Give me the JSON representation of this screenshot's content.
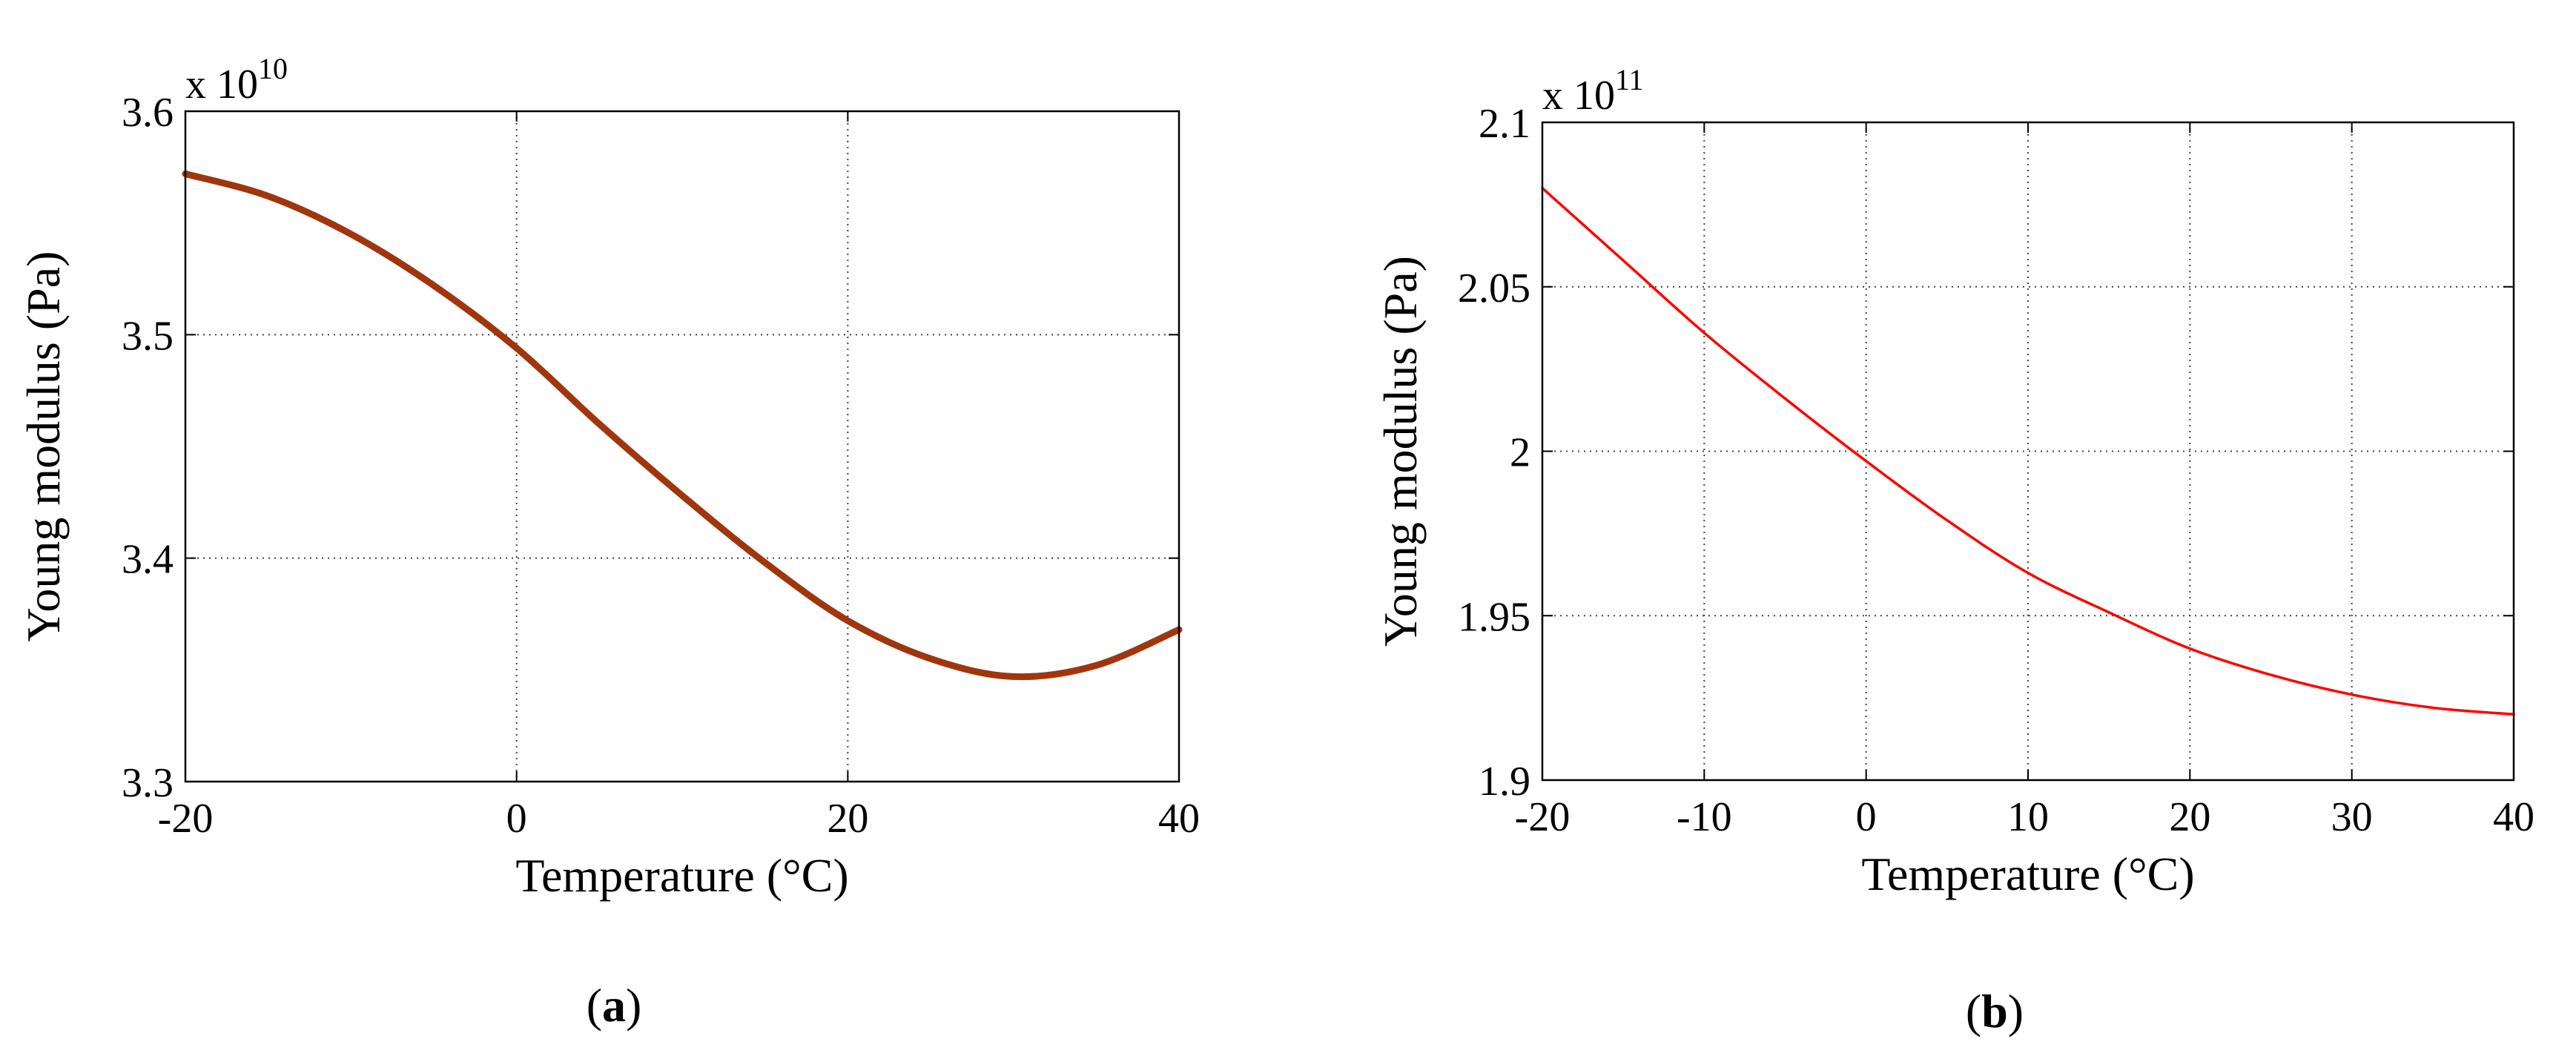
{
  "chart_data": [
    {
      "type": "line",
      "panel_label": "a",
      "xlabel": "Temperature (°C)",
      "ylabel": "Young modulus (Pa)",
      "exponent_label": "x 10",
      "exponent_power": "10",
      "xlim": [
        -20,
        40
      ],
      "ylim": [
        3.3,
        3.6
      ],
      "xticks": [
        -20,
        0,
        20,
        40
      ],
      "xtick_labels": [
        "-20",
        "0",
        "20",
        "40"
      ],
      "yticks": [
        3.3,
        3.4,
        3.5,
        3.6
      ],
      "ytick_labels": [
        "3.3",
        "3.4",
        "3.5",
        "3.6"
      ],
      "grid": true,
      "color": "#a0360e",
      "series": [
        {
          "x": [
            -20,
            -15,
            -10,
            -5,
            0,
            5,
            10,
            15,
            20,
            25,
            30,
            35,
            40
          ],
          "y": [
            3.572,
            3.562,
            3.545,
            3.522,
            3.494,
            3.46,
            3.428,
            3.398,
            3.372,
            3.355,
            3.347,
            3.352,
            3.368
          ]
        }
      ]
    },
    {
      "type": "line",
      "panel_label": "b",
      "xlabel": "Temperature (°C)",
      "ylabel": "Young modulus (Pa)",
      "exponent_label": "x 10",
      "exponent_power": "11",
      "xlim": [
        -20,
        40
      ],
      "ylim": [
        1.9,
        2.1
      ],
      "xticks": [
        -20,
        -10,
        0,
        10,
        20,
        30,
        40
      ],
      "xtick_labels": [
        "-20",
        "-10",
        "0",
        "10",
        "20",
        "30",
        "40"
      ],
      "yticks": [
        1.9,
        1.95,
        2.0,
        2.05,
        2.1
      ],
      "ytick_labels": [
        "1.9",
        "1.95",
        "2",
        "2.05",
        "2.1"
      ],
      "grid": true,
      "color": "#ff0000",
      "series": [
        {
          "x": [
            -20,
            -15,
            -10,
            -5,
            0,
            5,
            10,
            15,
            20,
            25,
            30,
            35,
            40
          ],
          "y": [
            2.08,
            2.058,
            2.036,
            2.016,
            1.997,
            1.979,
            1.963,
            1.951,
            1.94,
            1.932,
            1.926,
            1.922,
            1.92
          ]
        }
      ]
    }
  ]
}
